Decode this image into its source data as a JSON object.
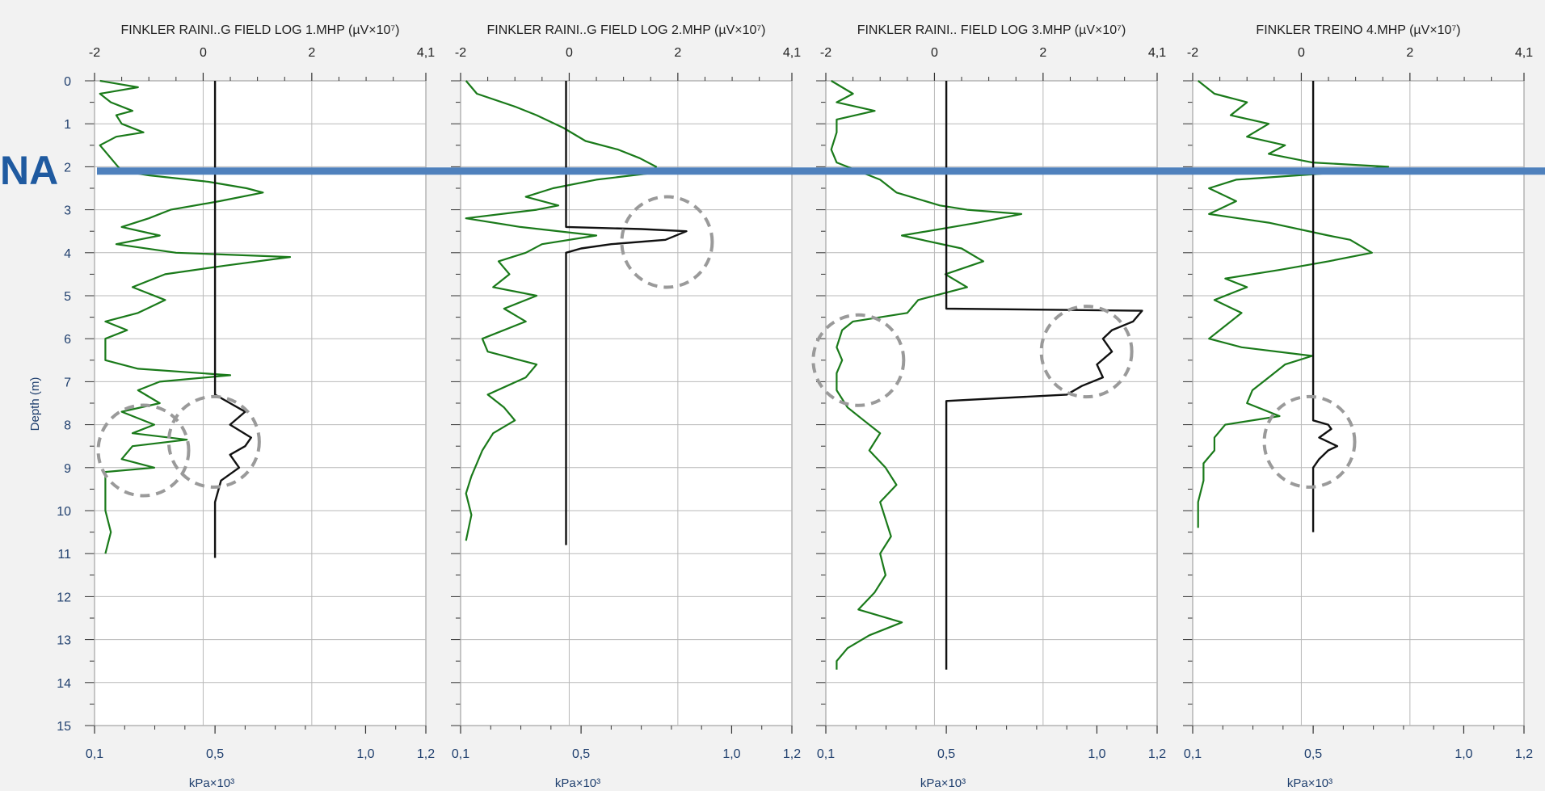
{
  "chart_data": {
    "type": "line",
    "ylabel": "Depth (m)",
    "depth_ticks": [
      "0",
      "1",
      "2",
      "3",
      "4",
      "5",
      "6",
      "7",
      "8",
      "9",
      "10",
      "11",
      "12",
      "13",
      "14",
      "15"
    ],
    "ylim": [
      0,
      15
    ],
    "y_reversed": true,
    "top_axis": {
      "range": [
        -2,
        4.1
      ],
      "ticks": [
        -2,
        0,
        2,
        4.1
      ],
      "tick_labels": [
        "-2",
        "0",
        "2",
        "4,1"
      ]
    },
    "bottom_axis": {
      "range": [
        0.1,
        1.2
      ],
      "ticks": [
        0.1,
        0.5,
        1.0,
        1.2
      ],
      "tick_labels": [
        "0,1",
        "0,5",
        "1,0",
        "1,2"
      ],
      "unit": "kPa×10³"
    },
    "water_level": {
      "label": "NA",
      "depth": 2.1,
      "color": "#4f81bd"
    },
    "series_colors": {
      "conductivity": "#1a7a1a",
      "pressure": "#111111",
      "marker": "#9a9a9a"
    },
    "panels": [
      {
        "title": "FINKLER RAINI..G FIELD LOG 1.MHP (µV×10⁷)",
        "conductivity": [
          [
            0,
            -1.9
          ],
          [
            0.15,
            -1.2
          ],
          [
            0.3,
            -1.9
          ],
          [
            0.5,
            -1.7
          ],
          [
            0.7,
            -1.3
          ],
          [
            0.8,
            -1.6
          ],
          [
            1.0,
            -1.5
          ],
          [
            1.2,
            -1.1
          ],
          [
            1.3,
            -1.6
          ],
          [
            1.5,
            -1.9
          ],
          [
            1.8,
            -1.7
          ],
          [
            2.1,
            -1.5
          ],
          [
            2.2,
            -1.0
          ],
          [
            2.35,
            0.1
          ],
          [
            2.5,
            0.8
          ],
          [
            2.6,
            1.1
          ],
          [
            2.8,
            0.3
          ],
          [
            3.0,
            -0.6
          ],
          [
            3.2,
            -1.0
          ],
          [
            3.4,
            -1.5
          ],
          [
            3.6,
            -0.8
          ],
          [
            3.8,
            -1.6
          ],
          [
            4.0,
            -0.5
          ],
          [
            4.1,
            1.6
          ],
          [
            4.3,
            0.4
          ],
          [
            4.5,
            -0.7
          ],
          [
            4.8,
            -1.3
          ],
          [
            5.1,
            -0.7
          ],
          [
            5.4,
            -1.2
          ],
          [
            5.6,
            -1.8
          ],
          [
            5.8,
            -1.4
          ],
          [
            6.0,
            -1.8
          ],
          [
            6.5,
            -1.8
          ],
          [
            6.7,
            -1.2
          ],
          [
            6.85,
            0.5
          ],
          [
            7.0,
            -0.8
          ],
          [
            7.2,
            -1.2
          ],
          [
            7.5,
            -0.8
          ],
          [
            7.7,
            -1.5
          ],
          [
            8.0,
            -0.9
          ],
          [
            8.2,
            -1.3
          ],
          [
            8.35,
            -0.3
          ],
          [
            8.5,
            -1.3
          ],
          [
            8.8,
            -1.5
          ],
          [
            9.0,
            -0.9
          ],
          [
            9.1,
            -1.8
          ],
          [
            9.5,
            -1.8
          ],
          [
            10.0,
            -1.8
          ],
          [
            10.5,
            -1.7
          ],
          [
            11.0,
            -1.8
          ]
        ],
        "pressure": [
          [
            0,
            0.5
          ],
          [
            7.0,
            0.5
          ],
          [
            7.3,
            0.5
          ],
          [
            7.5,
            0.55
          ],
          [
            7.7,
            0.6
          ],
          [
            8.0,
            0.55
          ],
          [
            8.3,
            0.62
          ],
          [
            8.5,
            0.6
          ],
          [
            8.7,
            0.55
          ],
          [
            9.0,
            0.58
          ],
          [
            9.3,
            0.52
          ],
          [
            9.8,
            0.5
          ],
          [
            11.1,
            0.5
          ]
        ],
        "markers": [
          {
            "depth": 8.6,
            "x": -1.1
          },
          {
            "depth": 8.4,
            "x": 0.2
          }
        ]
      },
      {
        "title": "FINKLER RAINI..G FIELD LOG 2.MHP (µV×10⁷)",
        "conductivity": [
          [
            0,
            -1.9
          ],
          [
            0.3,
            -1.7
          ],
          [
            0.6,
            -1.0
          ],
          [
            0.8,
            -0.6
          ],
          [
            1.1,
            -0.1
          ],
          [
            1.4,
            0.3
          ],
          [
            1.6,
            0.9
          ],
          [
            1.8,
            1.3
          ],
          [
            2.0,
            1.6
          ],
          [
            2.15,
            1.5
          ],
          [
            2.3,
            0.5
          ],
          [
            2.5,
            -0.3
          ],
          [
            2.7,
            -0.8
          ],
          [
            2.9,
            -0.2
          ],
          [
            3.0,
            -0.6
          ],
          [
            3.2,
            -1.9
          ],
          [
            3.4,
            -0.9
          ],
          [
            3.6,
            0.5
          ],
          [
            3.8,
            -0.5
          ],
          [
            4.0,
            -0.8
          ],
          [
            4.2,
            -1.3
          ],
          [
            4.5,
            -1.1
          ],
          [
            4.8,
            -1.4
          ],
          [
            5.0,
            -0.6
          ],
          [
            5.3,
            -1.2
          ],
          [
            5.6,
            -0.8
          ],
          [
            6.0,
            -1.6
          ],
          [
            6.3,
            -1.5
          ],
          [
            6.6,
            -0.6
          ],
          [
            6.9,
            -0.8
          ],
          [
            7.3,
            -1.5
          ],
          [
            7.6,
            -1.2
          ],
          [
            7.9,
            -1.0
          ],
          [
            8.2,
            -1.4
          ],
          [
            8.6,
            -1.6
          ],
          [
            9.2,
            -1.8
          ],
          [
            9.6,
            -1.9
          ],
          [
            10.1,
            -1.8
          ],
          [
            10.7,
            -1.9
          ]
        ],
        "pressure": [
          [
            0,
            0.45
          ],
          [
            3.4,
            0.45
          ],
          [
            3.45,
            0.7
          ],
          [
            3.5,
            0.85
          ],
          [
            3.7,
            0.78
          ],
          [
            3.8,
            0.6
          ],
          [
            3.9,
            0.5
          ],
          [
            4.0,
            0.45
          ],
          [
            10.8,
            0.45
          ]
        ],
        "markers": [
          {
            "depth": 3.75,
            "x": 1.8
          }
        ]
      },
      {
        "title": "FINKLER   RAINI.. FIELD LOG 3.MHP (µV×10⁷)",
        "conductivity": [
          [
            0,
            -1.9
          ],
          [
            0.3,
            -1.5
          ],
          [
            0.5,
            -1.8
          ],
          [
            0.7,
            -1.1
          ],
          [
            0.9,
            -1.8
          ],
          [
            1.2,
            -1.8
          ],
          [
            1.6,
            -1.9
          ],
          [
            1.9,
            -1.8
          ],
          [
            2.3,
            -1.0
          ],
          [
            2.6,
            -0.7
          ],
          [
            2.9,
            0.1
          ],
          [
            3.0,
            0.6
          ],
          [
            3.1,
            1.6
          ],
          [
            3.3,
            0.8
          ],
          [
            3.6,
            -0.6
          ],
          [
            3.9,
            0.5
          ],
          [
            4.2,
            0.9
          ],
          [
            4.5,
            0.2
          ],
          [
            4.8,
            0.6
          ],
          [
            5.1,
            -0.3
          ],
          [
            5.4,
            -0.5
          ],
          [
            5.6,
            -1.5
          ],
          [
            5.8,
            -1.7
          ],
          [
            6.2,
            -1.8
          ],
          [
            6.5,
            -1.7
          ],
          [
            6.8,
            -1.8
          ],
          [
            7.2,
            -1.8
          ],
          [
            7.6,
            -1.6
          ],
          [
            7.9,
            -1.3
          ],
          [
            8.2,
            -1.0
          ],
          [
            8.6,
            -1.2
          ],
          [
            9.0,
            -0.9
          ],
          [
            9.4,
            -0.7
          ],
          [
            9.8,
            -1.0
          ],
          [
            10.2,
            -0.9
          ],
          [
            10.6,
            -0.8
          ],
          [
            11.0,
            -1.0
          ],
          [
            11.5,
            -0.9
          ],
          [
            11.9,
            -1.1
          ],
          [
            12.3,
            -1.4
          ],
          [
            12.6,
            -0.6
          ],
          [
            12.9,
            -1.2
          ],
          [
            13.2,
            -1.6
          ],
          [
            13.5,
            -1.8
          ],
          [
            13.7,
            -1.8
          ]
        ],
        "pressure": [
          [
            0,
            0.5
          ],
          [
            5.3,
            0.5
          ],
          [
            5.35,
            1.15
          ],
          [
            5.6,
            1.12
          ],
          [
            5.8,
            1.05
          ],
          [
            6.0,
            1.02
          ],
          [
            6.3,
            1.05
          ],
          [
            6.6,
            1.0
          ],
          [
            6.9,
            1.02
          ],
          [
            7.1,
            0.95
          ],
          [
            7.3,
            0.9
          ],
          [
            7.45,
            0.5
          ],
          [
            13.7,
            0.5
          ]
        ],
        "markers": [
          {
            "depth": 6.5,
            "x": -1.4
          },
          {
            "depth": 6.3,
            "x": 2.8
          }
        ]
      },
      {
        "title": "FINKLER TREINO 4.MHP (µV×10⁷)",
        "conductivity": [
          [
            0,
            -1.9
          ],
          [
            0.3,
            -1.6
          ],
          [
            0.5,
            -1.0
          ],
          [
            0.8,
            -1.3
          ],
          [
            1.0,
            -0.6
          ],
          [
            1.3,
            -1.0
          ],
          [
            1.5,
            -0.3
          ],
          [
            1.7,
            -0.6
          ],
          [
            1.9,
            0.2
          ],
          [
            2.0,
            1.6
          ],
          [
            2.15,
            0.5
          ],
          [
            2.3,
            -1.2
          ],
          [
            2.5,
            -1.7
          ],
          [
            2.8,
            -1.2
          ],
          [
            3.1,
            -1.7
          ],
          [
            3.3,
            -0.6
          ],
          [
            3.6,
            0.5
          ],
          [
            3.7,
            0.9
          ],
          [
            3.85,
            1.1
          ],
          [
            4.0,
            1.3
          ],
          [
            4.2,
            0.5
          ],
          [
            4.4,
            -0.4
          ],
          [
            4.6,
            -1.4
          ],
          [
            4.8,
            -1.0
          ],
          [
            5.1,
            -1.6
          ],
          [
            5.4,
            -1.1
          ],
          [
            5.7,
            -1.4
          ],
          [
            6.0,
            -1.7
          ],
          [
            6.2,
            -1.1
          ],
          [
            6.4,
            0.2
          ],
          [
            6.6,
            -0.3
          ],
          [
            6.9,
            -0.6
          ],
          [
            7.2,
            -0.9
          ],
          [
            7.5,
            -1.0
          ],
          [
            7.8,
            -0.4
          ],
          [
            8.0,
            -1.4
          ],
          [
            8.3,
            -1.6
          ],
          [
            8.6,
            -1.6
          ],
          [
            8.9,
            -1.8
          ],
          [
            9.3,
            -1.8
          ],
          [
            9.8,
            -1.9
          ],
          [
            10.4,
            -1.9
          ]
        ],
        "pressure": [
          [
            0,
            0.5
          ],
          [
            7.9,
            0.5
          ],
          [
            8.0,
            0.55
          ],
          [
            8.1,
            0.56
          ],
          [
            8.3,
            0.52
          ],
          [
            8.5,
            0.58
          ],
          [
            8.6,
            0.55
          ],
          [
            8.8,
            0.52
          ],
          [
            9.0,
            0.5
          ],
          [
            10.5,
            0.5
          ]
        ],
        "markers": [
          {
            "depth": 8.4,
            "x": 0.15
          }
        ]
      }
    ]
  }
}
